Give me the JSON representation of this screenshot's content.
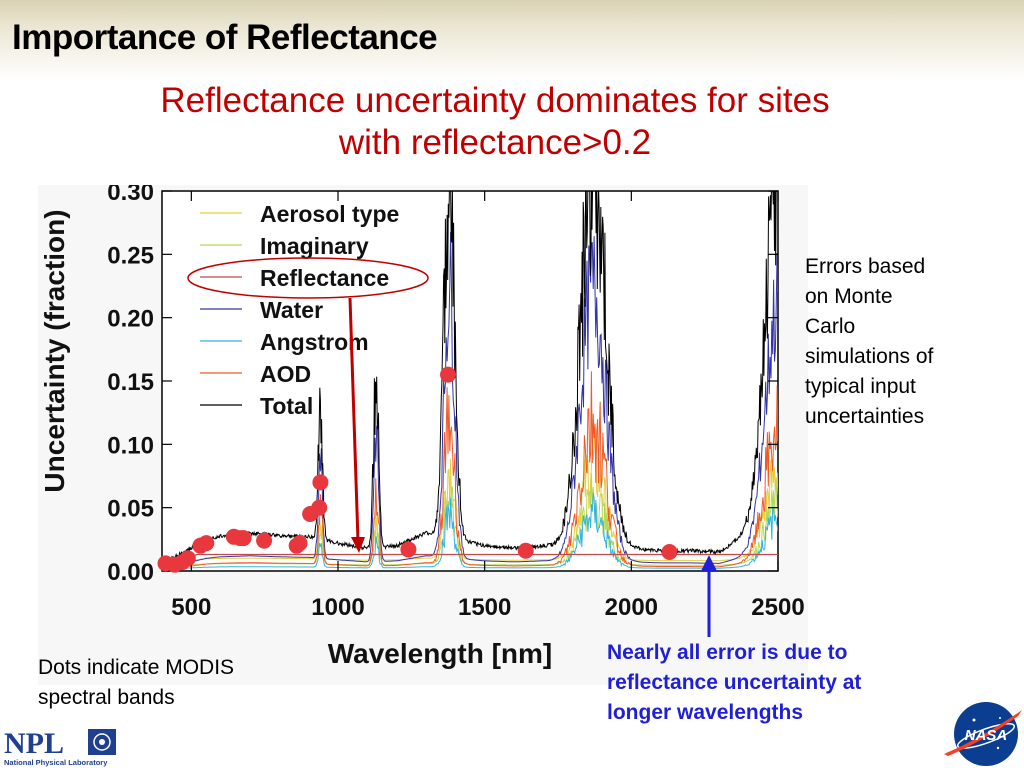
{
  "slide": {
    "title": "Importance of Reflectance",
    "subtitle_line1": "Reflectance uncertainty dominates for sites",
    "subtitle_line2": "with reflectance>0.2",
    "side_note": [
      "Errors based",
      "on Monte",
      "Carlo",
      "simulations of",
      "typical input",
      "uncertainties"
    ],
    "dots_note": [
      "Dots indicate MODIS",
      "spectral bands"
    ],
    "blue_note": [
      "Nearly all error is due to",
      "reflectance uncertainty at",
      "longer wavelengths"
    ],
    "npl_logo": {
      "text": "NPL",
      "subtext": "National Physical Laboratory",
      "color": "#1f3f8f"
    },
    "nasa_logo": {
      "text": "NASA",
      "color": "#0b3d91",
      "accent": "#fc3d21"
    }
  },
  "chart_data": {
    "type": "line",
    "xlabel": "Wavelength [nm]",
    "ylabel": "Uncertainty (fraction)",
    "xlim": [
      400,
      2500
    ],
    "ylim": [
      0,
      0.3
    ],
    "x_ticks": [
      500,
      1000,
      1500,
      2000,
      2500
    ],
    "y_ticks": [
      "0.00",
      "0.05",
      "0.10",
      "0.15",
      "0.20",
      "0.25",
      "0.30"
    ],
    "legend_position": "top-left",
    "legend": [
      {
        "name": "Aerosol type",
        "color": "#e6cf3a"
      },
      {
        "name": "Imaginary",
        "color": "#b5d85a"
      },
      {
        "name": "Reflectance",
        "color": "#c04a4a"
      },
      {
        "name": "Water",
        "color": "#3333aa"
      },
      {
        "name": "Angstrom",
        "color": "#33b4e0"
      },
      {
        "name": "AOD",
        "color": "#f05a28"
      },
      {
        "name": "Total",
        "color": "#000000"
      }
    ],
    "reflectance_level": 0.013,
    "total_baseline": [
      [
        400,
        0.005
      ],
      [
        450,
        0.012
      ],
      [
        500,
        0.018
      ],
      [
        550,
        0.025
      ],
      [
        600,
        0.028
      ],
      [
        700,
        0.03
      ],
      [
        800,
        0.028
      ],
      [
        900,
        0.027
      ],
      [
        1000,
        0.022
      ],
      [
        1100,
        0.018
      ],
      [
        1200,
        0.02
      ],
      [
        1300,
        0.03
      ],
      [
        1500,
        0.02
      ],
      [
        1600,
        0.018
      ],
      [
        1700,
        0.02
      ],
      [
        2000,
        0.018
      ],
      [
        2100,
        0.016
      ],
      [
        2200,
        0.016
      ],
      [
        2300,
        0.015
      ],
      [
        2400,
        0.03
      ],
      [
        2500,
        0.06
      ]
    ],
    "absorption_peaks": [
      {
        "center": 940,
        "height": 0.11,
        "width": 10
      },
      {
        "center": 1130,
        "height": 0.14,
        "width": 12
      },
      {
        "center": 1380,
        "height": 0.3,
        "width": 25
      },
      {
        "center": 1870,
        "height": 0.3,
        "width": 60
      },
      {
        "center": 2500,
        "height": 0.26,
        "width": 60
      }
    ],
    "modis_bands": [
      {
        "x": 412,
        "y": 0.006
      },
      {
        "x": 443,
        "y": 0.005
      },
      {
        "x": 469,
        "y": 0.007
      },
      {
        "x": 488,
        "y": 0.01
      },
      {
        "x": 531,
        "y": 0.02
      },
      {
        "x": 551,
        "y": 0.022
      },
      {
        "x": 645,
        "y": 0.027
      },
      {
        "x": 667,
        "y": 0.026
      },
      {
        "x": 678,
        "y": 0.026
      },
      {
        "x": 748,
        "y": 0.024
      },
      {
        "x": 859,
        "y": 0.02
      },
      {
        "x": 869,
        "y": 0.022
      },
      {
        "x": 905,
        "y": 0.045
      },
      {
        "x": 936,
        "y": 0.05
      },
      {
        "x": 940,
        "y": 0.07
      },
      {
        "x": 1240,
        "y": 0.017
      },
      {
        "x": 1375,
        "y": 0.155
      },
      {
        "x": 1640,
        "y": 0.016
      },
      {
        "x": 2130,
        "y": 0.015
      }
    ]
  }
}
